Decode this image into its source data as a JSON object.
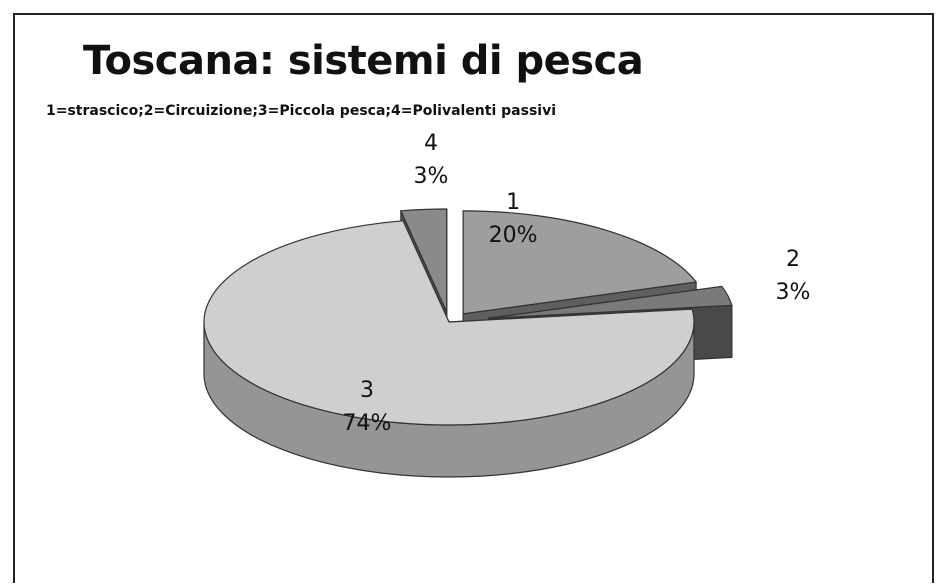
{
  "chart_data": {
    "type": "pie",
    "title": "Toscana: sistemi di pesca",
    "subtitle": "1=strascico;2=Circuizione;3=Piccola pesca;4=Polivalenti passivi",
    "categories": [
      "1",
      "2",
      "3",
      "4"
    ],
    "values": [
      20,
      3,
      74,
      3
    ],
    "value_labels": [
      "20%",
      "3%",
      "74%",
      "3%"
    ],
    "three_d": true,
    "exploded": true,
    "colors": {
      "1": "#9e9e9e",
      "2": "#7a7a7a",
      "3": "#cfcfcf",
      "4": "#8a8a8a"
    },
    "legend": "none"
  }
}
